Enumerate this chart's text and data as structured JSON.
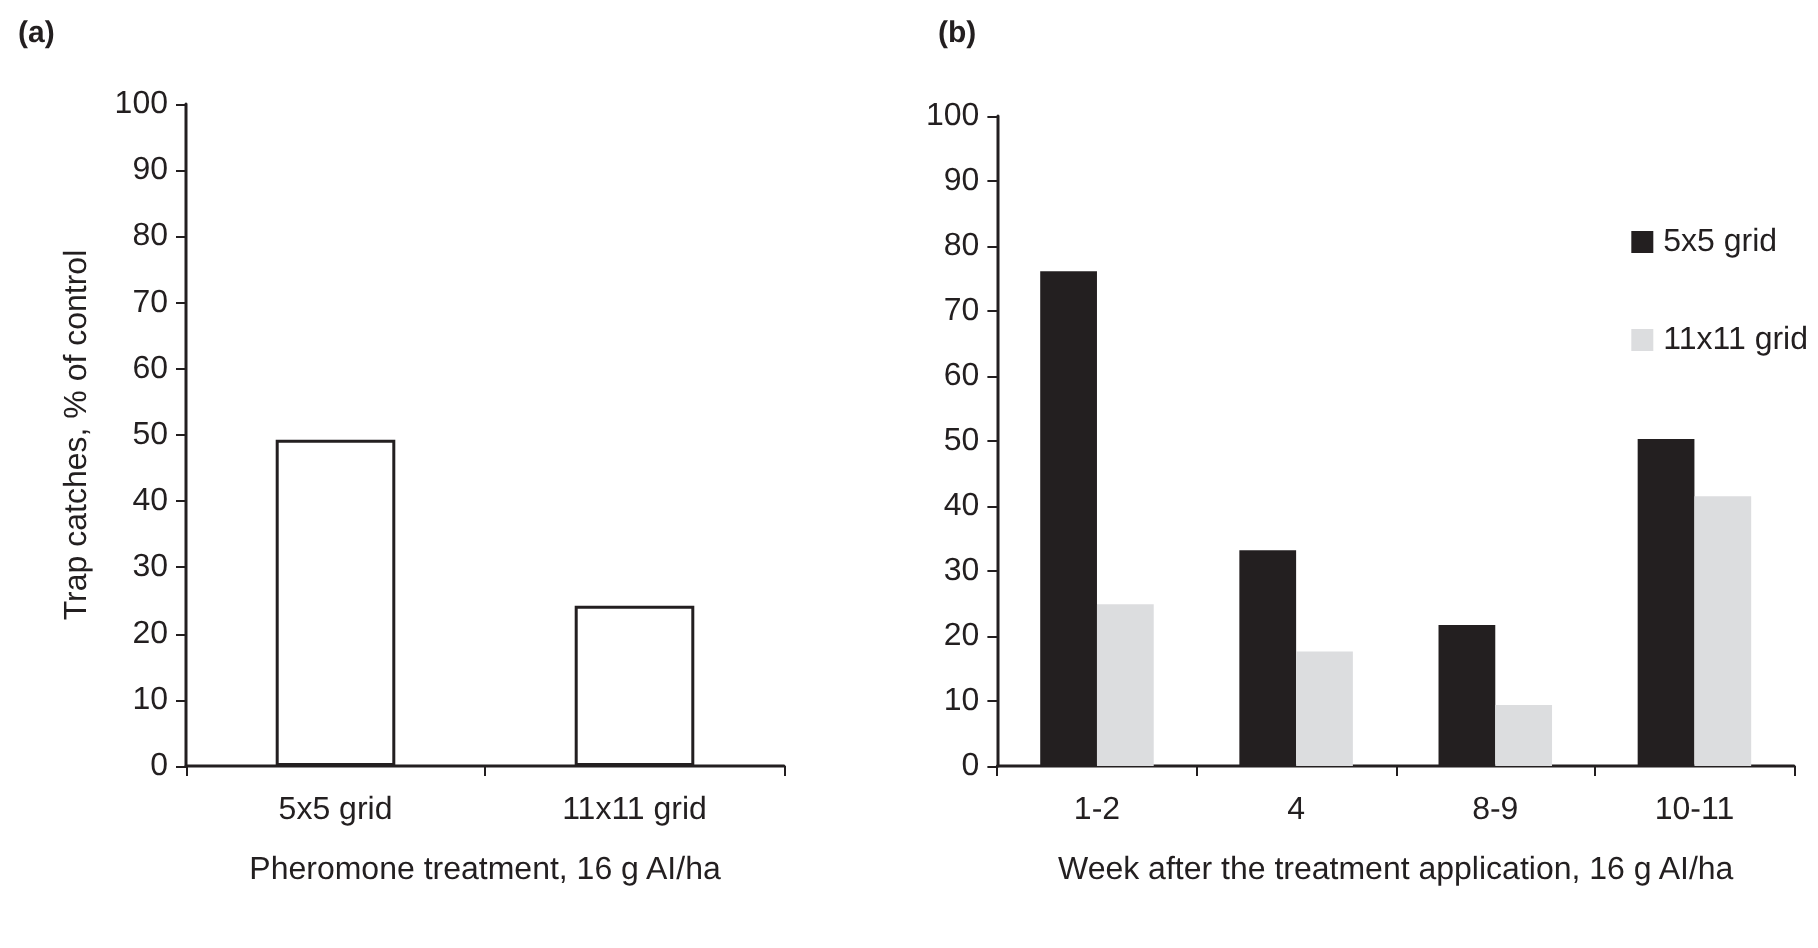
{
  "chart_data": [
    {
      "type": "bar",
      "title": "(a)",
      "ylabel": "Trap catches, % of control",
      "xlabel": "Pheromone treatment, 16 g AI/ha",
      "categories": [
        "5x5 grid",
        "11x11 grid"
      ],
      "series": [
        {
          "color": "#ffffff",
          "values": [
            49.3,
            24.2
          ]
        }
      ],
      "ylim": [
        0,
        100
      ],
      "yticks": [
        0,
        10,
        20,
        30,
        40,
        50,
        60,
        70,
        80,
        90,
        100
      ],
      "grid": false,
      "legend": false
    },
    {
      "type": "bar",
      "title": "(b)",
      "xlabel": "Week after the treatment application, 16 g AI/ha",
      "categories": [
        "1-2",
        "4",
        "8-9",
        "10-11"
      ],
      "series": [
        {
          "name": "5x5 grid",
          "color": "#231f20",
          "values": [
            76.1,
            33.2,
            21.7,
            50.3
          ]
        },
        {
          "name": "11x11 grid",
          "color": "#dcdddf",
          "values": [
            24.9,
            17.6,
            9.4,
            41.5
          ]
        }
      ],
      "ylim": [
        0,
        100
      ],
      "yticks": [
        0,
        10,
        20,
        30,
        40,
        50,
        60,
        70,
        80,
        90,
        100
      ],
      "grid": false,
      "legend": "top right"
    }
  ]
}
